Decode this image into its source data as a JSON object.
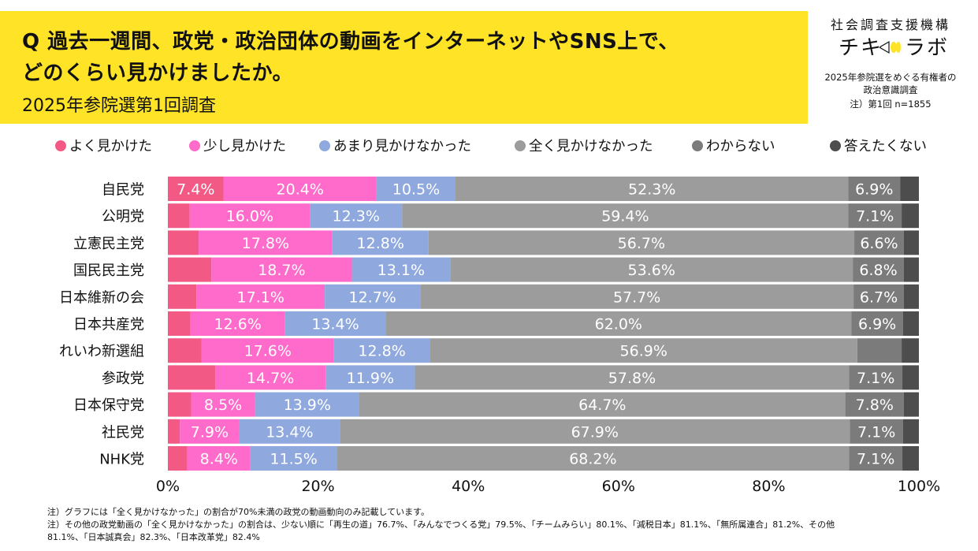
{
  "header": {
    "title_line1": "Q 過去一週間、政党・政治団体の動画をインターネットやSNS上で、",
    "title_line2": "どのくらい見かけましたか。",
    "subtitle": "2025年参院選第1回調査",
    "org_name": "社会調査支援機構",
    "brand_left": "チキ",
    "brand_right": "ラボ",
    "survey_title_line1": "2025年参院選をめぐる有権者の",
    "survey_title_line2": "政治意識調査",
    "survey_note": "注）第1回 n=1855",
    "accent_color": "#ffe327"
  },
  "footnotes": [
    "注）グラフには「全く見かけなかった」の割合が70%未満の政党の動画動向のみ記載しています。",
    "注）その他の政党動画の「全く見かけなかった」の割合は、少ない順に「再生の道」76.7%、「みんなでつくる党」79.5%、「チームみらい」80.1%、「減税日本」81.1%、「無所属連合」81.2%、その他",
    "81.1%、「日本誠真会」82.3%、「日本改革党」82.4%"
  ],
  "chart_data": {
    "type": "bar",
    "orientation": "horizontal",
    "stacked": true,
    "percent_stacked": true,
    "categories": [
      "自民党",
      "公明党",
      "立憲民主党",
      "国民民主党",
      "日本維新の会",
      "日本共産党",
      "れいわ新選組",
      "参政党",
      "日本保守党",
      "社民党",
      "NHK党"
    ],
    "series": [
      {
        "name": "よく見かけた",
        "color": "#f25a85",
        "values": [
          7.4,
          2.9,
          4.1,
          5.8,
          3.8,
          3.0,
          4.5,
          6.3,
          3.1,
          1.6,
          2.6
        ],
        "labels": [
          "7.4%",
          "",
          "",
          "",
          "",
          "",
          "",
          "",
          "",
          "",
          ""
        ]
      },
      {
        "name": "少し見かけた",
        "color": "#ff6bcb",
        "values": [
          20.4,
          16.0,
          17.8,
          18.7,
          17.1,
          12.6,
          17.6,
          14.7,
          8.5,
          7.9,
          8.4
        ],
        "labels": [
          "20.4%",
          "16.0%",
          "17.8%",
          "18.7%",
          "17.1%",
          "12.6%",
          "17.6%",
          "14.7%",
          "8.5%",
          "7.9%",
          "8.4%"
        ]
      },
      {
        "name": "あまり見かけなかった",
        "color": "#8fa8dd",
        "values": [
          10.5,
          12.3,
          12.8,
          13.1,
          12.7,
          13.4,
          12.8,
          11.9,
          13.9,
          13.4,
          11.5
        ],
        "labels": [
          "10.5%",
          "12.3%",
          "12.8%",
          "13.1%",
          "12.7%",
          "13.4%",
          "12.8%",
          "11.9%",
          "13.9%",
          "13.4%",
          "11.5%"
        ]
      },
      {
        "name": "全く見かけなかった",
        "color": "#9c9c9c",
        "values": [
          52.3,
          59.4,
          56.7,
          53.6,
          57.7,
          62.0,
          56.9,
          57.8,
          64.7,
          67.9,
          68.2
        ],
        "labels": [
          "52.3%",
          "59.4%",
          "56.7%",
          "53.6%",
          "57.7%",
          "62.0%",
          "56.9%",
          "57.8%",
          "64.7%",
          "67.9%",
          "68.2%"
        ]
      },
      {
        "name": "わからない",
        "color": "#7b7b7b",
        "values": [
          6.9,
          7.1,
          6.6,
          6.8,
          6.7,
          6.9,
          5.9,
          7.1,
          7.8,
          7.1,
          7.1
        ],
        "labels": [
          "6.9%",
          "7.1%",
          "6.6%",
          "6.8%",
          "6.7%",
          "6.9%",
          "",
          "7.1%",
          "7.8%",
          "7.1%",
          "7.1%"
        ]
      },
      {
        "name": "答えたくない",
        "color": "#4d4d4d",
        "values": [
          2.5,
          2.3,
          2.0,
          2.0,
          2.0,
          2.1,
          2.3,
          2.2,
          2.0,
          2.1,
          2.2
        ],
        "labels": [
          "",
          "",
          "",
          "",
          "",
          "",
          "",
          "",
          "",
          "",
          ""
        ]
      }
    ],
    "xlim": [
      0,
      100
    ],
    "x_ticks": [
      "0%",
      "20%",
      "40%",
      "60%",
      "80%",
      "100%"
    ],
    "legend_position": "top",
    "grid": false
  }
}
